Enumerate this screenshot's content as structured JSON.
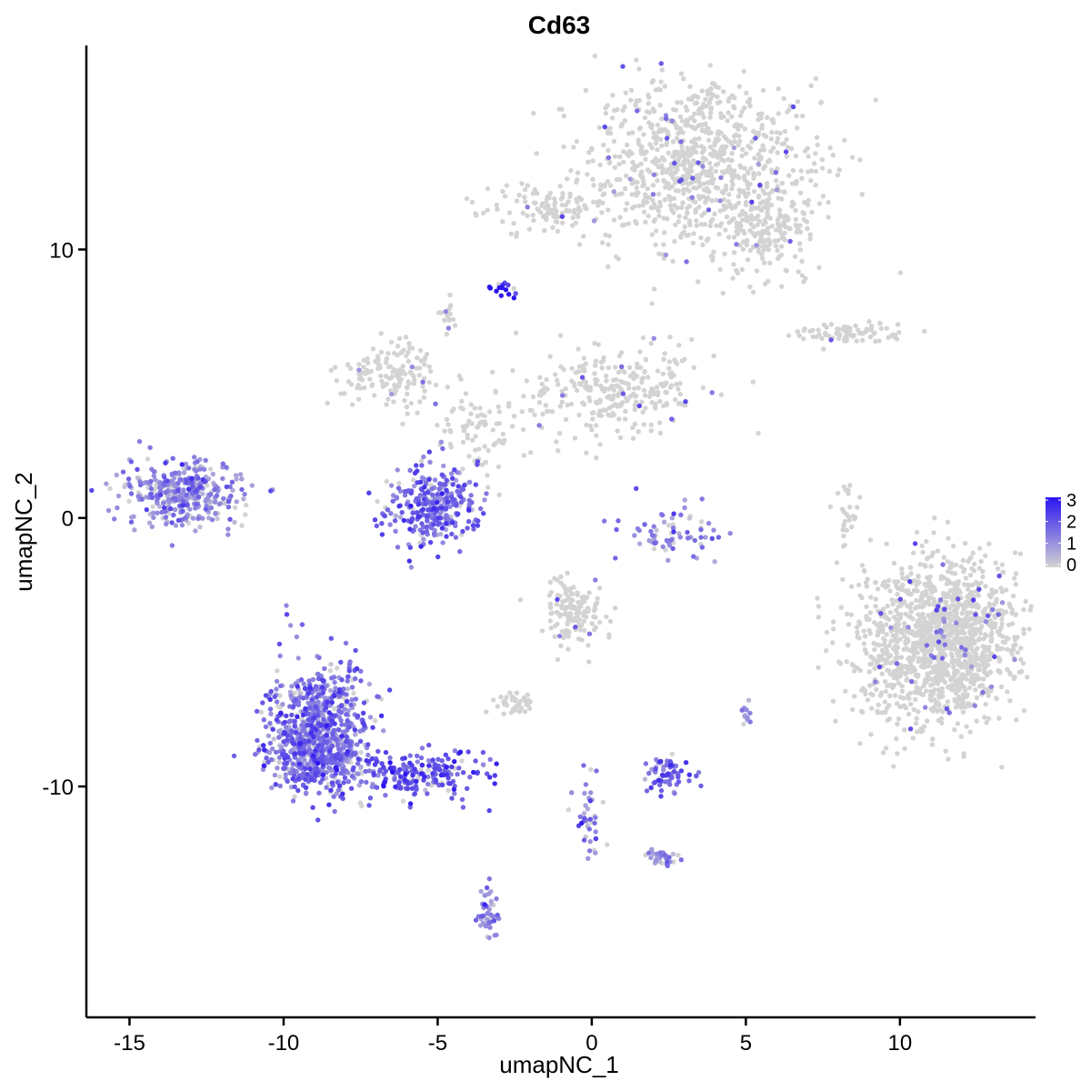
{
  "chart_data": {
    "type": "scatter",
    "title": "Cd63",
    "xlabel": "umapNC_1",
    "ylabel": "umapNC_2",
    "xlim": [
      -16.4,
      14.4
    ],
    "ylim": [
      -18.6,
      17.6
    ],
    "x_ticks": [
      -15,
      -10,
      -5,
      0,
      5,
      10
    ],
    "x_tick_labels": [
      "-15",
      "-10",
      "-5",
      "0",
      "5",
      "10"
    ],
    "y_ticks": [
      -10,
      0,
      10
    ],
    "y_tick_labels": [
      "-10",
      "0",
      "10"
    ],
    "grid": false,
    "color_scale": {
      "low": "#d3d3d3",
      "high": "#2b14f0",
      "min": 0,
      "max": 3,
      "ticks": [
        0,
        1,
        2,
        3
      ],
      "tick_labels": [
        "0",
        "1",
        "2",
        "3"
      ],
      "placement": "right"
    },
    "clusters": [
      {
        "label": "top-right",
        "cx": 3.5,
        "cy": 13.3,
        "sx": 1.9,
        "sy": 1.7,
        "n": 900,
        "expr": 0.05
      },
      {
        "label": "upper-arm-left",
        "cx": -1.5,
        "cy": 11.5,
        "sx": 1.1,
        "sy": 0.45,
        "n": 100,
        "expr": 0.05
      },
      {
        "label": "upper-arm-right",
        "cx": 5.7,
        "cy": 10.7,
        "sx": 0.7,
        "sy": 0.9,
        "n": 160,
        "expr": 0.1
      },
      {
        "label": "small-bright",
        "cx": -2.9,
        "cy": 8.6,
        "sx": 0.18,
        "sy": 0.14,
        "n": 18,
        "expr": 2.8
      },
      {
        "label": "small-gray",
        "cx": -4.7,
        "cy": 7.5,
        "sx": 0.15,
        "sy": 0.3,
        "n": 16,
        "expr": 0.0
      },
      {
        "label": "right-strip",
        "cx": 8.4,
        "cy": 6.9,
        "sx": 1.0,
        "sy": 0.2,
        "n": 80,
        "expr": 0.3
      },
      {
        "label": "mid-left-wing",
        "cx": -6.6,
        "cy": 5.3,
        "sx": 0.9,
        "sy": 0.6,
        "n": 140,
        "expr": 0.05
      },
      {
        "label": "mid-right-wing",
        "cx": 0.8,
        "cy": 4.6,
        "sx": 1.6,
        "sy": 0.8,
        "n": 280,
        "expr": 0.05
      },
      {
        "label": "mid-stem",
        "cx": -3.8,
        "cy": 3.2,
        "sx": 0.7,
        "sy": 0.9,
        "n": 80,
        "expr": 0.2
      },
      {
        "label": "far-left",
        "cx": -13.3,
        "cy": 0.9,
        "sx": 0.95,
        "sy": 0.6,
        "n": 380,
        "expr": 1.1
      },
      {
        "label": "mid-purple",
        "cx": -5.1,
        "cy": 0.5,
        "sx": 0.7,
        "sy": 0.7,
        "n": 320,
        "expr": 1.6
      },
      {
        "label": "center-arc",
        "cx": 2.8,
        "cy": -0.6,
        "sx": 0.9,
        "sy": 0.5,
        "n": 70,
        "expr": 1.3
      },
      {
        "label": "small-gray-right",
        "cx": 8.2,
        "cy": 0.2,
        "sx": 0.2,
        "sy": 0.6,
        "n": 28,
        "expr": 0.05
      },
      {
        "label": "large-right",
        "cx": 11.3,
        "cy": -4.6,
        "sx": 1.3,
        "sy": 1.5,
        "n": 1400,
        "expr": 0.05
      },
      {
        "label": "center-low",
        "cx": -0.6,
        "cy": -3.6,
        "sx": 0.5,
        "sy": 0.6,
        "n": 150,
        "expr": 0.2
      },
      {
        "label": "lower-left-head",
        "cx": -8.8,
        "cy": -7.8,
        "sx": 0.8,
        "sy": 1.2,
        "n": 700,
        "expr": 1.5
      },
      {
        "label": "lower-left-body",
        "cx": -9.0,
        "cy": -8.9,
        "sx": 0.8,
        "sy": 0.6,
        "n": 200,
        "expr": 1.4
      },
      {
        "label": "lower-left-tail",
        "cx": -5.6,
        "cy": -9.5,
        "sx": 1.2,
        "sy": 0.45,
        "n": 200,
        "expr": 1.9
      },
      {
        "label": "lower-mid-gray",
        "cx": -2.5,
        "cy": -6.9,
        "sx": 0.3,
        "sy": 0.2,
        "n": 40,
        "expr": 0.05
      },
      {
        "label": "small-lower",
        "cx": 2.4,
        "cy": -9.5,
        "sx": 0.35,
        "sy": 0.3,
        "n": 70,
        "expr": 1.7
      },
      {
        "label": "bottom-mid",
        "cx": -3.4,
        "cy": -14.8,
        "sx": 0.2,
        "sy": 0.5,
        "n": 45,
        "expr": 1.2
      },
      {
        "label": "lower-stream",
        "cx": -0.1,
        "cy": -11.0,
        "sx": 0.3,
        "sy": 0.9,
        "n": 40,
        "expr": 1.3
      },
      {
        "label": "lower-right-small",
        "cx": 2.3,
        "cy": -12.6,
        "sx": 0.3,
        "sy": 0.15,
        "n": 30,
        "expr": 1.3
      },
      {
        "label": "tiny-right",
        "cx": 5.0,
        "cy": -7.3,
        "sx": 0.1,
        "sy": 0.2,
        "n": 12,
        "expr": 0.9
      }
    ]
  }
}
